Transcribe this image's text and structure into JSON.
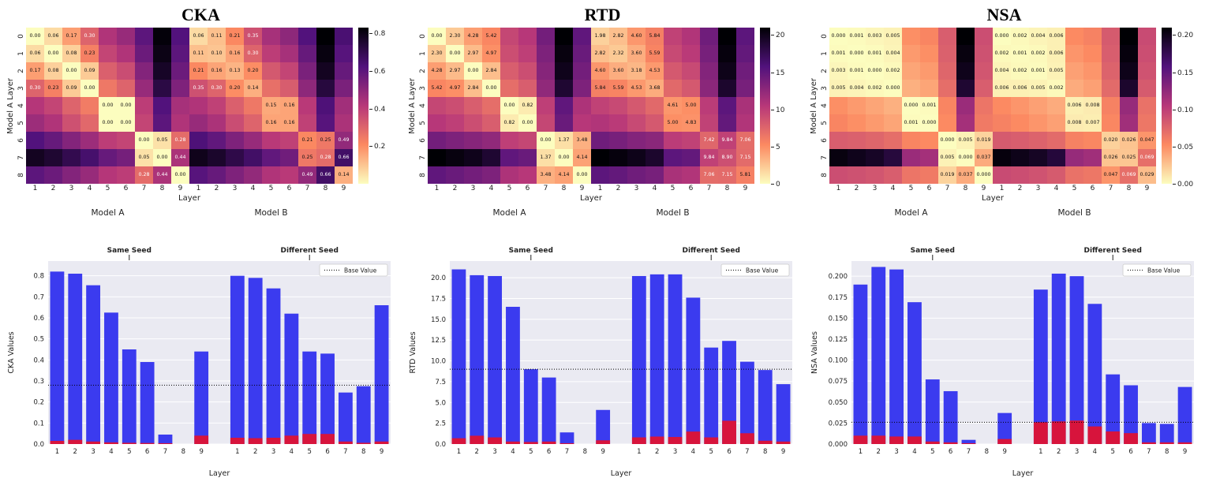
{
  "colors": {
    "bar_blue": "#3b3bef",
    "bar_red": "#d7143c",
    "plot_bg": "#eaeaf2",
    "grid_line": "#ffffff",
    "text": "#222222"
  },
  "chart_data": [
    {
      "title": "CKA",
      "heatmap": {
        "type": "heatmap",
        "ylabel": "Model A Layer",
        "xlabel": "Layer",
        "group_labels": [
          "Model A",
          "Model B"
        ],
        "x_ticks": [
          "1",
          "2",
          "3",
          "4",
          "5",
          "6",
          "7",
          "8",
          "9",
          "1",
          "2",
          "3",
          "4",
          "5",
          "6",
          "7",
          "8",
          "9"
        ],
        "y_ticks": [
          "0",
          "1",
          "2",
          "3",
          "4",
          "5",
          "6",
          "7",
          "8"
        ],
        "decimals": 2,
        "vmax": 0.83,
        "annot_blocks": [
          [
            0,
            3
          ],
          [
            4,
            5
          ],
          [
            6,
            8
          ]
        ],
        "colorbar": {
          "max": 0.83,
          "ticks": [
            0.2,
            0.4,
            0.6,
            0.8
          ],
          "labels": [
            "0.2",
            "0.4",
            "0.6",
            "0.8"
          ]
        },
        "values": [
          [
            0.0,
            0.06,
            0.17,
            0.3,
            0.43,
            0.48,
            0.6,
            0.82,
            0.62,
            0.06,
            0.11,
            0.21,
            0.35,
            0.45,
            0.5,
            0.62,
            0.83,
            0.64
          ],
          [
            0.06,
            0.0,
            0.08,
            0.23,
            0.38,
            0.43,
            0.57,
            0.8,
            0.6,
            0.11,
            0.1,
            0.16,
            0.3,
            0.4,
            0.45,
            0.58,
            0.81,
            0.61
          ],
          [
            0.17,
            0.08,
            0.0,
            0.09,
            0.31,
            0.36,
            0.52,
            0.77,
            0.57,
            0.21,
            0.16,
            0.13,
            0.2,
            0.33,
            0.38,
            0.54,
            0.78,
            0.58
          ],
          [
            0.3,
            0.23,
            0.09,
            0.0,
            0.25,
            0.3,
            0.48,
            0.72,
            0.53,
            0.35,
            0.3,
            0.2,
            0.14,
            0.27,
            0.32,
            0.5,
            0.73,
            0.54
          ],
          [
            0.42,
            0.38,
            0.3,
            0.24,
            0.0,
            0.0,
            0.4,
            0.62,
            0.45,
            0.43,
            0.39,
            0.31,
            0.25,
            0.15,
            0.16,
            0.41,
            0.63,
            0.46
          ],
          [
            0.47,
            0.43,
            0.35,
            0.29,
            0.0,
            0.0,
            0.38,
            0.6,
            0.43,
            0.48,
            0.44,
            0.36,
            0.3,
            0.16,
            0.16,
            0.39,
            0.61,
            0.44
          ],
          [
            0.62,
            0.58,
            0.52,
            0.47,
            0.4,
            0.38,
            0.0,
            0.05,
            0.28,
            0.63,
            0.59,
            0.53,
            0.48,
            0.41,
            0.39,
            0.21,
            0.25,
            0.49
          ],
          [
            0.78,
            0.75,
            0.7,
            0.65,
            0.58,
            0.55,
            0.05,
            0.0,
            0.44,
            0.79,
            0.76,
            0.71,
            0.66,
            0.59,
            0.56,
            0.25,
            0.28,
            0.66
          ],
          [
            0.6,
            0.57,
            0.52,
            0.48,
            0.42,
            0.4,
            0.28,
            0.44,
            0.0,
            0.61,
            0.58,
            0.53,
            0.49,
            0.43,
            0.41,
            0.49,
            0.66,
            0.14
          ]
        ]
      },
      "bars": {
        "type": "bar",
        "ylabel": "CKA Values",
        "xlabel": "Layer",
        "group_titles": [
          "Same Seed",
          "Different Seed"
        ],
        "legend_label": "Base Value",
        "base_value": 0.28,
        "x_labels": [
          "1",
          "2",
          "3",
          "4",
          "5",
          "6",
          "7",
          "8",
          "9"
        ],
        "y_ticks": [
          0.0,
          0.1,
          0.2,
          0.3,
          0.4,
          0.5,
          0.6,
          0.7,
          0.8
        ],
        "y_tick_labels": [
          "0.0",
          "0.1",
          "0.2",
          "0.3",
          "0.4",
          "0.5",
          "0.6",
          "0.7",
          "0.8"
        ],
        "ymax": 0.87,
        "blue": [
          0.82,
          0.81,
          0.755,
          0.625,
          0.45,
          0.39,
          0.045,
          0.0,
          0.44,
          0.8,
          0.79,
          0.74,
          0.62,
          0.44,
          0.43,
          0.245,
          0.275,
          0.66
        ],
        "red": [
          0.015,
          0.02,
          0.012,
          0.008,
          0.006,
          0.005,
          0.004,
          0.0,
          0.04,
          0.03,
          0.028,
          0.03,
          0.04,
          0.048,
          0.048,
          0.012,
          0.006,
          0.012
        ]
      }
    },
    {
      "title": "RTD",
      "heatmap": {
        "type": "heatmap",
        "ylabel": "Model A Layer",
        "xlabel": "Layer",
        "group_labels": [
          "Model A",
          "Model B"
        ],
        "x_ticks": [
          "1",
          "2",
          "3",
          "4",
          "5",
          "6",
          "7",
          "8",
          "9",
          "1",
          "2",
          "3",
          "4",
          "5",
          "6",
          "7",
          "8",
          "9"
        ],
        "y_ticks": [
          "0",
          "1",
          "2",
          "3",
          "4",
          "5",
          "6",
          "7",
          "8"
        ],
        "decimals": 2,
        "vmax": 21,
        "annot_blocks": [
          [
            0,
            3
          ],
          [
            4,
            5
          ],
          [
            6,
            8
          ]
        ],
        "colorbar": {
          "max": 21,
          "ticks": [
            0,
            5,
            10,
            15,
            20
          ],
          "labels": [
            "0",
            "5",
            "10",
            "15",
            "20"
          ]
        },
        "values": [
          [
            0.0,
            2.3,
            4.28,
            5.42,
            9.5,
            10.5,
            14.0,
            21.0,
            15.0,
            1.98,
            2.82,
            4.6,
            5.84,
            9.8,
            10.8,
            14.2,
            21.0,
            15.2
          ],
          [
            2.3,
            0.0,
            2.97,
            4.97,
            9.0,
            10.0,
            13.5,
            20.5,
            14.5,
            2.82,
            2.32,
            3.6,
            5.59,
            9.3,
            10.3,
            13.8,
            20.6,
            14.8
          ],
          [
            4.28,
            2.97,
            0.0,
            2.84,
            8.0,
            9.0,
            13.0,
            20.0,
            14.0,
            4.6,
            3.6,
            3.18,
            4.53,
            8.3,
            9.3,
            13.2,
            20.1,
            14.2
          ],
          [
            5.42,
            4.97,
            2.84,
            0.0,
            7.0,
            8.0,
            12.5,
            19.0,
            13.5,
            5.84,
            5.59,
            4.53,
            3.68,
            7.3,
            8.3,
            12.8,
            19.2,
            13.8
          ],
          [
            9.5,
            9.0,
            8.0,
            7.0,
            0.0,
            0.82,
            10.0,
            15.0,
            11.0,
            9.8,
            9.3,
            8.3,
            7.3,
            4.61,
            5.0,
            10.2,
            15.2,
            11.2
          ],
          [
            10.5,
            10.0,
            9.0,
            8.0,
            0.82,
            0.0,
            9.5,
            14.5,
            10.5,
            10.8,
            10.3,
            9.3,
            8.3,
            5.0,
            4.83,
            9.8,
            14.8,
            10.8
          ],
          [
            14.0,
            13.5,
            13.0,
            12.5,
            10.0,
            9.5,
            0.0,
            1.37,
            3.48,
            14.2,
            13.8,
            13.2,
            12.8,
            10.2,
            9.8,
            7.42,
            9.84,
            7.06
          ],
          [
            21.0,
            20.5,
            20.0,
            19.0,
            15.0,
            14.5,
            1.37,
            0.0,
            4.14,
            21.0,
            20.6,
            20.1,
            19.2,
            15.2,
            14.8,
            9.84,
            8.9,
            7.15
          ],
          [
            15.0,
            14.5,
            14.0,
            13.5,
            11.0,
            10.5,
            3.48,
            4.14,
            0.0,
            15.2,
            14.8,
            14.2,
            13.8,
            11.2,
            10.8,
            7.06,
            7.15,
            5.81
          ]
        ]
      },
      "bars": {
        "type": "bar",
        "ylabel": "RTD Values",
        "xlabel": "Layer",
        "group_titles": [
          "Same Seed",
          "Different Seed"
        ],
        "legend_label": "Base Value",
        "base_value": 9.0,
        "x_labels": [
          "1",
          "2",
          "3",
          "4",
          "5",
          "6",
          "7",
          "8",
          "9"
        ],
        "y_ticks": [
          0,
          2.5,
          5,
          7.5,
          10,
          12.5,
          15,
          17.5,
          20
        ],
        "y_tick_labels": [
          "0.0",
          "2.5",
          "5.0",
          "7.5",
          "10.0",
          "12.5",
          "15.0",
          "17.5",
          "20.0"
        ],
        "ymax": 22,
        "blue": [
          21.0,
          20.3,
          20.2,
          16.5,
          9.0,
          8.0,
          1.4,
          0.0,
          4.1,
          20.2,
          20.4,
          20.4,
          17.6,
          11.6,
          12.4,
          9.9,
          8.9,
          7.2
        ],
        "red": [
          0.7,
          1.0,
          0.8,
          0.3,
          0.25,
          0.3,
          0.1,
          0.0,
          0.45,
          0.8,
          0.9,
          0.85,
          1.5,
          0.8,
          2.8,
          1.3,
          0.4,
          0.3
        ]
      }
    },
    {
      "title": "NSA",
      "heatmap": {
        "type": "heatmap",
        "ylabel": "Model A Layer",
        "xlabel": "Layer",
        "group_labels": [
          "Model A",
          "Model B"
        ],
        "x_ticks": [
          "1",
          "2",
          "3",
          "4",
          "5",
          "6",
          "7",
          "8",
          "9",
          "1",
          "2",
          "3",
          "4",
          "5",
          "6",
          "7",
          "8",
          "9"
        ],
        "y_ticks": [
          "0",
          "1",
          "2",
          "3",
          "4",
          "5",
          "6",
          "7",
          "8"
        ],
        "decimals": 3,
        "vmax": 0.21,
        "annot_blocks": [
          [
            0,
            3
          ],
          [
            4,
            5
          ],
          [
            6,
            8
          ]
        ],
        "colorbar": {
          "max": 0.21,
          "ticks": [
            0,
            0.05,
            0.1,
            0.15,
            0.2
          ],
          "labels": [
            "0.00",
            "0.05",
            "0.10",
            "0.15",
            "0.20"
          ]
        },
        "values": [
          [
            0.0,
            0.001,
            0.003,
            0.005,
            0.05,
            0.055,
            0.08,
            0.21,
            0.09,
            0.0,
            0.002,
            0.004,
            0.006,
            0.052,
            0.057,
            0.082,
            0.21,
            0.092
          ],
          [
            0.001,
            0.0,
            0.001,
            0.004,
            0.045,
            0.05,
            0.078,
            0.205,
            0.088,
            0.002,
            0.001,
            0.002,
            0.006,
            0.047,
            0.052,
            0.08,
            0.206,
            0.09
          ],
          [
            0.003,
            0.001,
            0.0,
            0.002,
            0.04,
            0.045,
            0.075,
            0.2,
            0.085,
            0.004,
            0.002,
            0.001,
            0.005,
            0.042,
            0.047,
            0.077,
            0.201,
            0.087
          ],
          [
            0.005,
            0.004,
            0.002,
            0.0,
            0.035,
            0.04,
            0.07,
            0.19,
            0.08,
            0.006,
            0.006,
            0.005,
            0.002,
            0.037,
            0.042,
            0.072,
            0.192,
            0.082
          ],
          [
            0.05,
            0.045,
            0.04,
            0.035,
            0.0,
            0.001,
            0.055,
            0.12,
            0.065,
            0.052,
            0.047,
            0.042,
            0.037,
            0.006,
            0.008,
            0.057,
            0.122,
            0.067
          ],
          [
            0.055,
            0.05,
            0.045,
            0.04,
            0.001,
            0.0,
            0.052,
            0.115,
            0.062,
            0.057,
            0.052,
            0.047,
            0.042,
            0.008,
            0.007,
            0.054,
            0.117,
            0.064
          ],
          [
            0.08,
            0.078,
            0.075,
            0.07,
            0.055,
            0.052,
            0.0,
            0.005,
            0.019,
            0.082,
            0.08,
            0.077,
            0.072,
            0.057,
            0.054,
            0.02,
            0.026,
            0.047
          ],
          [
            0.205,
            0.2,
            0.195,
            0.185,
            0.12,
            0.115,
            0.005,
            0.0,
            0.037,
            0.206,
            0.201,
            0.196,
            0.186,
            0.122,
            0.117,
            0.026,
            0.025,
            0.069
          ],
          [
            0.09,
            0.088,
            0.085,
            0.08,
            0.065,
            0.062,
            0.019,
            0.037,
            0.0,
            0.092,
            0.09,
            0.087,
            0.082,
            0.067,
            0.064,
            0.047,
            0.069,
            0.029
          ]
        ]
      },
      "bars": {
        "type": "bar",
        "ylabel": "NSA Values",
        "xlabel": "Layer",
        "group_titles": [
          "Same Seed",
          "Different Seed"
        ],
        "legend_label": "Base Value",
        "base_value": 0.026,
        "x_labels": [
          "1",
          "2",
          "3",
          "4",
          "5",
          "6",
          "7",
          "8",
          "9"
        ],
        "y_ticks": [
          0,
          0.025,
          0.05,
          0.075,
          0.1,
          0.125,
          0.15,
          0.175,
          0.2
        ],
        "y_tick_labels": [
          "0.000",
          "0.025",
          "0.050",
          "0.075",
          "0.100",
          "0.125",
          "0.150",
          "0.175",
          "0.200"
        ],
        "ymax": 0.218,
        "blue": [
          0.19,
          0.211,
          0.208,
          0.169,
          0.077,
          0.063,
          0.005,
          0.0,
          0.037,
          0.184,
          0.203,
          0.2,
          0.167,
          0.083,
          0.07,
          0.025,
          0.024,
          0.068
        ],
        "red": [
          0.01,
          0.01,
          0.009,
          0.009,
          0.003,
          0.002,
          0.001,
          0.0,
          0.006,
          0.026,
          0.027,
          0.028,
          0.021,
          0.015,
          0.013,
          0.002,
          0.002,
          0.002
        ]
      }
    }
  ]
}
